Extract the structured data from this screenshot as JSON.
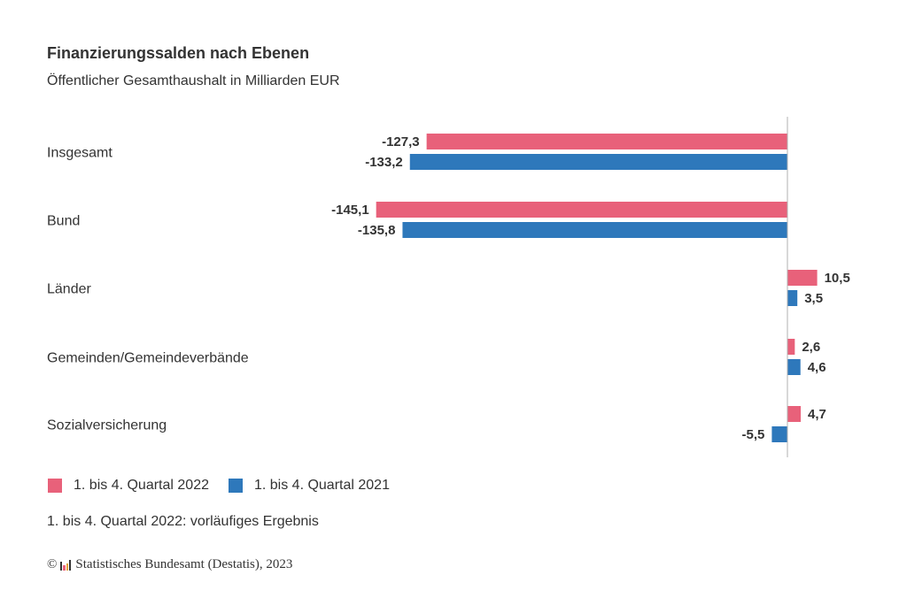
{
  "header": {
    "title": "Finanzierungssalden nach Ebenen",
    "subtitle": "Öffentlicher Gesamthaushalt in Milliarden EUR"
  },
  "chart_data": {
    "type": "bar",
    "orientation": "horizontal",
    "title": "Finanzierungssalden nach Ebenen",
    "subtitle": "Öffentlicher Gesamthaushalt in Milliarden EUR",
    "categories": [
      "Insgesamt",
      "Bund",
      "Länder",
      "Gemeinden/Gemeindeverbände",
      "Sozialversicherung"
    ],
    "series": [
      {
        "name": "1. bis 4. Quartal 2022",
        "color": "#e8617a",
        "values": [
          -127.3,
          -145.1,
          10.5,
          2.6,
          4.7
        ],
        "labels": [
          "-127,3",
          "-145,1",
          "10,5",
          "2,6",
          "4,7"
        ]
      },
      {
        "name": "1. bis 4. Quartal 2021",
        "color": "#2e78bb",
        "values": [
          -133.2,
          -135.8,
          3.5,
          4.6,
          -5.5
        ],
        "labels": [
          "-133,2",
          "-135,8",
          "3,5",
          "4,6",
          "-5,5"
        ]
      }
    ],
    "grid": false,
    "legend_position": "bottom-left"
  },
  "legend": {
    "items": [
      {
        "label": "1. bis 4. Quartal 2022",
        "color": "#e8617a"
      },
      {
        "label": "1. bis 4. Quartal 2021",
        "color": "#2e78bb"
      }
    ]
  },
  "footnote": "1. bis 4. Quartal 2022: vorläufiges Ergebnis",
  "source": {
    "copyright_symbol": "©",
    "text": "Statistisches Bundesamt (Destatis), 2023",
    "logo_icon": "destatis-logo-icon"
  },
  "colors": {
    "series_2022": "#e8617a",
    "series_2021": "#2e78bb",
    "axis": "#b0b0b0"
  }
}
